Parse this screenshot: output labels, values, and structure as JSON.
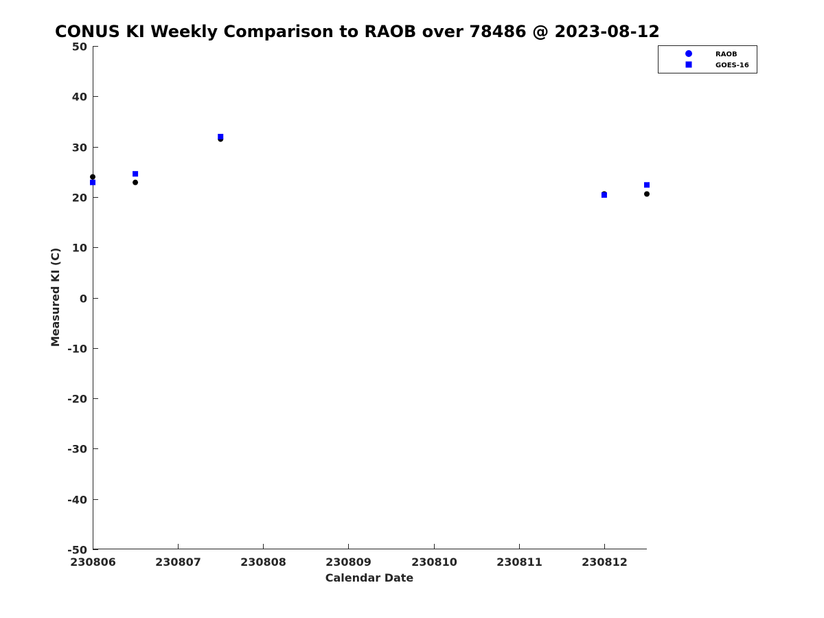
{
  "chart_data": {
    "type": "scatter",
    "title": "CONUS KI Weekly Comparison to RAOB over 78486 @ 2023-08-12",
    "xlabel": "Calendar Date",
    "ylabel": "Measured KI (C)",
    "xlim": [
      230806,
      230812.5
    ],
    "ylim": [
      -50,
      50
    ],
    "x_ticks": [
      230806,
      230807,
      230808,
      230809,
      230810,
      230811,
      230812
    ],
    "x_tick_labels": [
      "230806",
      "230807",
      "230808",
      "230809",
      "230810",
      "230811",
      "230812"
    ],
    "y_ticks": [
      -50,
      -40,
      -30,
      -20,
      -10,
      0,
      10,
      20,
      30,
      40,
      50
    ],
    "y_tick_labels": [
      "-50",
      "-40",
      "-30",
      "-20",
      "-10",
      "0",
      "10",
      "20",
      "30",
      "40",
      "50"
    ],
    "grid": false,
    "legend_position": "top-right",
    "series": [
      {
        "name": "RAOB",
        "marker": "circle",
        "color": "#000000",
        "legend_color": "#0000ff",
        "points": [
          {
            "x": 230806.0,
            "y": 24.0
          },
          {
            "x": 230806.5,
            "y": 22.9
          },
          {
            "x": 230807.5,
            "y": 31.5
          },
          {
            "x": 230812.0,
            "y": 20.6
          },
          {
            "x": 230812.5,
            "y": 20.6
          }
        ]
      },
      {
        "name": "GOES-16",
        "marker": "square",
        "color": "#0000ff",
        "legend_color": "#0000ff",
        "points": [
          {
            "x": 230806.0,
            "y": 22.9
          },
          {
            "x": 230806.5,
            "y": 24.6
          },
          {
            "x": 230807.5,
            "y": 32.0
          },
          {
            "x": 230812.0,
            "y": 20.4
          },
          {
            "x": 230812.5,
            "y": 22.4
          }
        ]
      }
    ]
  }
}
